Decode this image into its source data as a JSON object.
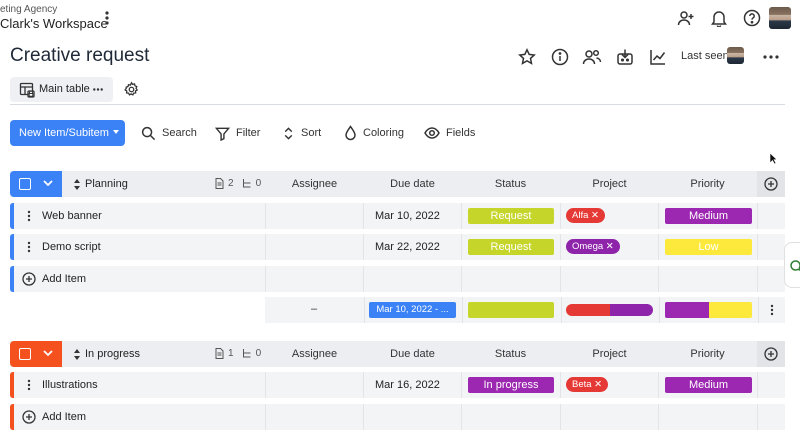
{
  "workspace": {
    "subtitle": "eting Agency",
    "name": "Clark's Workspace"
  },
  "board": {
    "title": "Creative request",
    "last_seen_label": "Last seen"
  },
  "tabs": {
    "main_label": "Main table"
  },
  "toolbar": {
    "new_item_label": "New Item/Subitem",
    "search_label": "Search",
    "filter_label": "Filter",
    "sort_label": "Sort",
    "coloring_label": "Coloring",
    "fields_label": "Fields"
  },
  "columns": [
    "Assignee",
    "Due date",
    "Status",
    "Project",
    "Priority"
  ],
  "add_item_label": "Add Item",
  "colors": {
    "accent": "#3b82f6",
    "planning": "#3b82f6",
    "in_progress": "#f4511e",
    "request": "#c5d52a",
    "in_progress_status": "#9c27b0",
    "medium": "#9c27b0",
    "low": "#fde93b",
    "alfa": "#e53935",
    "omega": "#8e24aa",
    "beta": "#e53935"
  },
  "groups": [
    {
      "name": "Planning",
      "doc_count": "2",
      "sub_count": "0",
      "items": [
        {
          "name": "Web banner",
          "due": "Mar 10, 2022",
          "status": "Request",
          "project": "Alfa",
          "priority": "Medium"
        },
        {
          "name": "Demo script",
          "due": "Mar 22, 2022",
          "status": "Request",
          "project": "Omega",
          "priority": "Low"
        }
      ],
      "summary": {
        "assignee": "–",
        "due": "Mar 10, 2022 - ..."
      }
    },
    {
      "name": "In progress",
      "doc_count": "1",
      "sub_count": "0",
      "items": [
        {
          "name": "Illustrations",
          "due": "Mar 16, 2022",
          "status": "In progress",
          "project": "Beta",
          "priority": "Medium"
        }
      ]
    }
  ],
  "icons": [
    "more-vertical-icon",
    "add-user-icon",
    "bell-icon",
    "help-icon",
    "star-icon",
    "info-icon",
    "people-icon",
    "integrations-icon",
    "activity-chart-icon",
    "table-icon",
    "gear-icon",
    "search-icon",
    "filter-icon",
    "sort-icon",
    "drop-icon",
    "eye-icon",
    "plus-circle-icon",
    "chevron-down-icon",
    "cursor-icon",
    "chat-icon"
  ]
}
